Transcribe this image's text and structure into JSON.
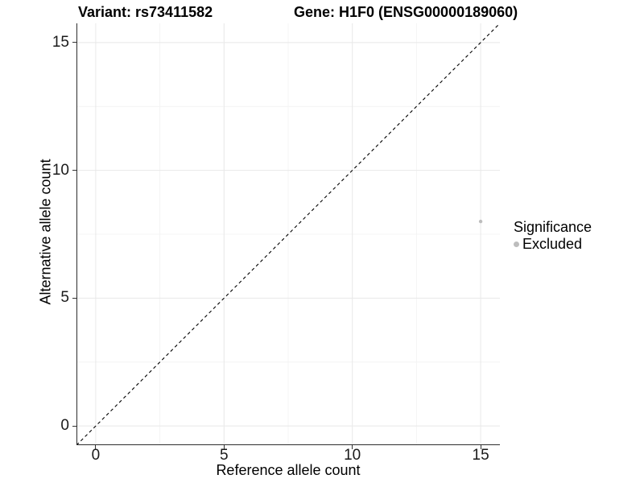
{
  "titles": {
    "variant": "Variant: rs73411582",
    "gene": "Gene: H1F0 (ENSG00000189060)"
  },
  "legend": {
    "title": "Significance",
    "items": [
      {
        "label": "Excluded",
        "color": "#BDBDBD"
      }
    ]
  },
  "colors": {
    "background": "#FFFFFF",
    "grid_major": "#E8E8E8",
    "grid_minor": "#F4F4F4",
    "axis_line": "#2E2E2E",
    "tick_mark": "#333333",
    "point": "#BDBDBD",
    "reference_line": "#000000",
    "text": "#000000"
  },
  "chart_data": {
    "type": "scatter",
    "title_left": "Variant: rs73411582",
    "title_right": "Gene: H1F0 (ENSG00000189060)",
    "xlabel": "Reference allele count",
    "ylabel": "Alternative allele count",
    "xlim": [
      -0.75,
      15.75
    ],
    "ylim": [
      -0.75,
      15.75
    ],
    "x_ticks": [
      0,
      5,
      10,
      15
    ],
    "y_ticks": [
      0,
      5,
      10,
      15
    ],
    "x_minor_ticks": [
      2.5,
      7.5,
      12.5
    ],
    "y_minor_ticks": [
      2.5,
      7.5,
      12.5
    ],
    "grid": "major+minor",
    "legend_position": "right",
    "legend_title": "Significance",
    "series": [
      {
        "name": "Excluded",
        "color": "#BDBDBD",
        "marker_radius": 2.2,
        "points": [
          {
            "x": 15,
            "y": 8
          }
        ]
      }
    ],
    "reference_line": {
      "equation": "y = x",
      "style": "dashed",
      "color": "#000000"
    }
  }
}
